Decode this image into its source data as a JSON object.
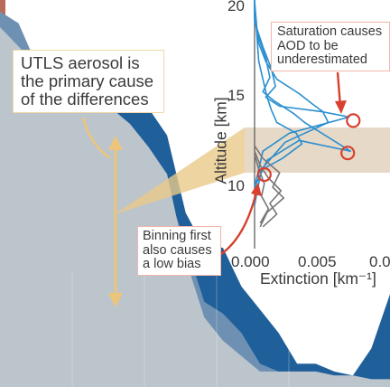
{
  "chart_data": [
    {
      "type": "area",
      "series": [
        {
          "name": "",
          "color": "#1f5f9a",
          "values": [
            0.33,
            0.12,
            0.34,
            0.52,
            0.66,
            0.66,
            0.26,
            0.22,
            0.28,
            0.35,
            0.55,
            0.64,
            0.64,
            0.74,
            0.8,
            0.86,
            0.94,
            0.94,
            0.96,
            0.97,
            0.9,
            0.76
          ]
        },
        {
          "name": "",
          "color": "#6e90b3",
          "values": [
            0.03,
            0.06,
            0.17,
            0.23,
            0.28,
            0.33,
            0.34,
            0.36,
            0.43,
            0.49,
            0.63,
            0.78,
            0.81,
            0.86,
            0.94,
            0.96,
            0.96,
            0.96,
            0.97,
            0.97,
            0.98,
            0.98
          ]
        },
        {
          "name": "",
          "color": "#bcc4cc",
          "values": [
            0.07,
            0.12,
            0.17,
            0.23,
            0.25,
            0.26,
            0.28,
            0.32,
            0.38,
            0.45,
            0.67,
            0.82,
            0.88,
            0.92,
            0.96,
            0.96,
            0.96,
            0.96,
            0.97,
            0.97,
            0.98,
            0.98
          ]
        }
      ]
    },
    {
      "type": "line",
      "xlabel": "Extinction [km⁻¹]",
      "ylabel": "Altitude [km]",
      "xlim": [
        0.0,
        0.01
      ],
      "ylim": [
        8,
        20
      ],
      "xticks": [
        "0.000",
        "0.005",
        "0.0"
      ],
      "yticks": [
        "20",
        "15",
        "10"
      ],
      "series": [
        {
          "name": "",
          "color": "#2a8fd0",
          "x": [
            0.0,
            0.0,
            0.0003,
            0.0008,
            0.0016,
            0.0032,
            0.0042,
            0.0049,
            0.0053,
            0.0022,
            0.0005,
            0.0
          ],
          "y": [
            20.5,
            19.5,
            18.0,
            17.0,
            16.0,
            15.2,
            14.6,
            14.2,
            13.6,
            12.5,
            11.0,
            9.0
          ]
        },
        {
          "name": "",
          "color": "#2a8fd0",
          "x": [
            0.0,
            0.0,
            0.0006,
            0.0012,
            0.0015,
            0.0008,
            0.0018,
            0.0048,
            0.0068,
            0.0025,
            0.0006,
            0.0
          ],
          "y": [
            20.5,
            19.2,
            17.8,
            16.6,
            15.6,
            15.0,
            14.5,
            14.2,
            13.9,
            13.0,
            12.0,
            10.0
          ]
        },
        {
          "name": "",
          "color": "#2a8fd0",
          "x": [
            0.0,
            0.0002,
            0.0008,
            0.0011,
            0.0006,
            0.0014,
            0.0028,
            0.0036,
            0.0069,
            0.0032,
            0.0009,
            0.0
          ],
          "y": [
            20.3,
            18.5,
            17.2,
            16.1,
            15.3,
            14.8,
            14.1,
            13.6,
            12.0,
            12.6,
            11.5,
            10.0
          ]
        },
        {
          "name": "",
          "color": "#2a8fd0",
          "x": [
            0.0,
            0.0003,
            0.0006,
            0.0009,
            0.0012,
            0.0016,
            0.003,
            0.0034,
            0.002,
            0.0006,
            0.0
          ],
          "y": [
            20.3,
            17.0,
            16.0,
            15.0,
            14.3,
            13.6,
            13.0,
            12.4,
            11.6,
            11.0,
            10.0
          ]
        },
        {
          "name": "",
          "color": "#777777",
          "x": [
            0.0,
            0.0006,
            0.0018,
            0.0013,
            0.0021,
            0.0009,
            0.0004
          ],
          "y": [
            12.3,
            11.6,
            10.8,
            10.0,
            9.4,
            8.6,
            7.8
          ]
        },
        {
          "name": "",
          "color": "#777777",
          "x": [
            0.0,
            0.0004,
            0.001,
            0.0019,
            0.0011,
            0.0016,
            0.0006
          ],
          "y": [
            12.0,
            11.2,
            10.5,
            9.8,
            9.1,
            8.5,
            7.8
          ]
        },
        {
          "name": "",
          "color": "#777777",
          "x": [
            0.0,
            0.0003,
            0.0007,
            0.0005,
            0.001,
            0.0004
          ],
          "y": [
            11.8,
            11.0,
            10.2,
            9.5,
            8.8,
            8.0
          ]
        }
      ],
      "highlight_band": {
        "y": [
          11.0,
          13.3
        ]
      },
      "markers": [
        {
          "x": 0.0071,
          "y": 13.7
        },
        {
          "x": 0.0067,
          "y": 11.9
        },
        {
          "x": 0.0007,
          "y": 10.7
        }
      ]
    }
  ],
  "annotations": {
    "utls": {
      "lines": [
        "UTLS aerosol is",
        "the primary cause",
        "of the differences"
      ]
    },
    "saturation": {
      "lines": [
        "Saturation causes",
        "AOD to be",
        "underestimated"
      ]
    },
    "binning": {
      "lines": [
        "Binning first",
        "also causes",
        "a low bias"
      ]
    }
  },
  "colors": {
    "band": "#e3d2bd",
    "arrow_gold": "#ecc57a",
    "callout_red": "#d8402f",
    "left_strip": "#b86a5b"
  }
}
